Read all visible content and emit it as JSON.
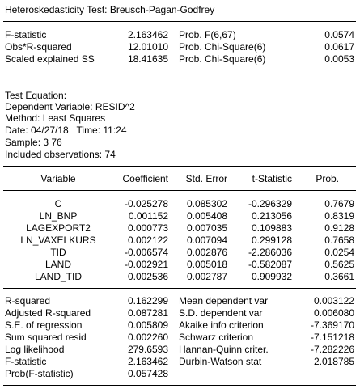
{
  "title": "Heteroskedasticity Test: Breusch-Pagan-Godfrey",
  "tests": [
    {
      "name": "F-statistic",
      "value": "2.163462",
      "prob_label": "Prob. F(6,67)",
      "prob": "0.0574"
    },
    {
      "name": "Obs*R-squared",
      "value": "12.01010",
      "prob_label": "Prob. Chi-Square(6)",
      "prob": "0.0617"
    },
    {
      "name": "Scaled explained SS",
      "value": "18.41635",
      "prob_label": "Prob. Chi-Square(6)",
      "prob": "0.0053"
    }
  ],
  "equation_info": [
    "Test Equation:",
    "Dependent Variable: RESID^2",
    "Method: Least Squares",
    "Date: 04/27/18   Time: 11:24",
    "Sample: 3 76",
    "Included observations: 74"
  ],
  "coef_headers": {
    "variable": "Variable",
    "coefficient": "Coefficient",
    "std_error": "Std. Error",
    "t_statistic": "t-Statistic",
    "prob": "Prob."
  },
  "coef_rows": [
    {
      "variable": "C",
      "coefficient": "-0.025278",
      "std_error": "0.085302",
      "t_statistic": "-0.296329",
      "prob": "0.7679"
    },
    {
      "variable": "LN_BNP",
      "coefficient": "0.001152",
      "std_error": "0.005408",
      "t_statistic": "0.213056",
      "prob": "0.8319"
    },
    {
      "variable": "LAGEXPORT2",
      "coefficient": "0.000773",
      "std_error": "0.007035",
      "t_statistic": "0.109883",
      "prob": "0.9128"
    },
    {
      "variable": "LN_VAXELKURS",
      "coefficient": "0.002122",
      "std_error": "0.007094",
      "t_statistic": "0.299128",
      "prob": "0.7658"
    },
    {
      "variable": "TID",
      "coefficient": "-0.006574",
      "std_error": "0.002876",
      "t_statistic": "-2.286036",
      "prob": "0.0254"
    },
    {
      "variable": "LAND",
      "coefficient": "-0.002921",
      "std_error": "0.005018",
      "t_statistic": "-0.582087",
      "prob": "0.5625"
    },
    {
      "variable": "LAND_TID",
      "coefficient": "0.002536",
      "std_error": "0.002787",
      "t_statistic": "0.909932",
      "prob": "0.3661"
    }
  ],
  "summary_rows": [
    {
      "label": "R-squared",
      "value": "0.162299",
      "label2": "Mean dependent var",
      "value2": "0.003122"
    },
    {
      "label": "Adjusted R-squared",
      "value": "0.087281",
      "label2": "S.D. dependent var",
      "value2": "0.006080"
    },
    {
      "label": "S.E. of regression",
      "value": "0.005809",
      "label2": "Akaike info criterion",
      "value2": "-7.369170"
    },
    {
      "label": "Sum squared resid",
      "value": "0.002260",
      "label2": "Schwarz criterion",
      "value2": "-7.151218"
    },
    {
      "label": "Log likelihood",
      "value": "279.6593",
      "label2": "Hannan-Quinn criter.",
      "value2": "-7.282226"
    },
    {
      "label": "F-statistic",
      "value": "2.163462",
      "label2": "Durbin-Watson stat",
      "value2": "2.018785"
    },
    {
      "label": "Prob(F-statistic)",
      "value": "0.057428",
      "label2": "",
      "value2": ""
    }
  ]
}
